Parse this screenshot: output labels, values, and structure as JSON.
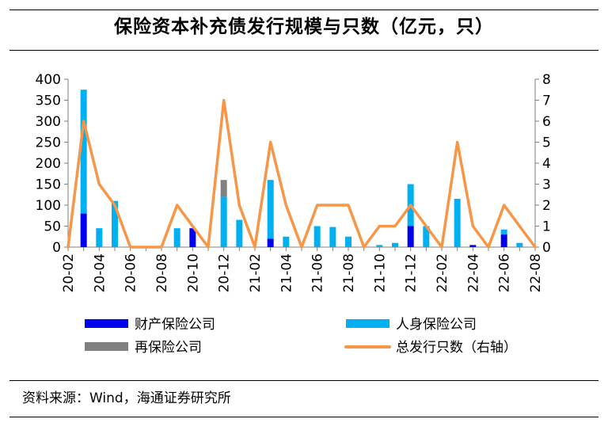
{
  "title": "保险资本补充债发行规模与只数（亿元，只）",
  "source": "资料来源：Wind，海通证券研究所",
  "chart_data": {
    "type": "bar",
    "stacked": true,
    "months": [
      "20-02",
      "20-03",
      "20-04",
      "20-05",
      "20-06",
      "20-07",
      "20-08",
      "20-09",
      "20-10",
      "20-11",
      "20-12",
      "21-01",
      "21-02",
      "21-03",
      "21-04",
      "21-05",
      "21-06",
      "21-07",
      "21-08",
      "21-09",
      "21-10",
      "21-11",
      "21-12",
      "22-01",
      "22-02",
      "22-03",
      "22-04",
      "22-05",
      "22-06",
      "22-07",
      "22-08"
    ],
    "tick_labels": [
      "20-02",
      "20-04",
      "20-06",
      "20-08",
      "20-10",
      "20-12",
      "21-02",
      "21-04",
      "21-06",
      "21-08",
      "21-10",
      "21-12",
      "22-02",
      "22-04",
      "22-06",
      "22-08"
    ],
    "y_left": {
      "min": 0,
      "max": 400,
      "ticks": [
        0,
        50,
        100,
        150,
        200,
        250,
        300,
        350,
        400
      ]
    },
    "y_right": {
      "min": 0,
      "max": 8,
      "ticks": [
        0,
        1,
        2,
        3,
        4,
        5,
        6,
        7,
        8
      ]
    },
    "series": [
      {
        "name": "财产保险公司",
        "kind": "bar",
        "axis": "left",
        "color": "#0000ee",
        "values": [
          0,
          80,
          0,
          0,
          0,
          0,
          0,
          0,
          45,
          0,
          0,
          0,
          0,
          20,
          0,
          0,
          0,
          0,
          0,
          0,
          0,
          0,
          50,
          0,
          0,
          0,
          5,
          0,
          30,
          0,
          0
        ]
      },
      {
        "name": "人身保险公司",
        "kind": "bar",
        "axis": "left",
        "color": "#00b0f0",
        "values": [
          0,
          295,
          45,
          110,
          0,
          0,
          0,
          45,
          0,
          0,
          120,
          65,
          0,
          140,
          25,
          0,
          50,
          48,
          25,
          0,
          5,
          10,
          100,
          50,
          0,
          115,
          0,
          0,
          12,
          10,
          0
        ]
      },
      {
        "name": "再保险公司",
        "kind": "bar",
        "axis": "left",
        "color": "#808080",
        "values": [
          0,
          0,
          0,
          0,
          0,
          0,
          0,
          0,
          0,
          0,
          40,
          0,
          0,
          0,
          0,
          0,
          0,
          0,
          0,
          0,
          0,
          0,
          0,
          0,
          0,
          0,
          0,
          0,
          0,
          0,
          0
        ]
      },
      {
        "name": "总发行只数（右轴）",
        "kind": "line",
        "axis": "right",
        "color": "#f79646",
        "values": [
          0,
          6,
          3,
          2,
          0,
          0,
          0,
          2,
          1,
          0,
          7,
          2,
          0,
          5,
          2,
          0,
          2,
          2,
          2,
          0,
          1,
          1,
          2,
          1,
          0,
          5,
          1,
          0,
          2,
          1,
          0
        ]
      }
    ],
    "legend": {
      "placement": "bottom",
      "columns": 2
    }
  }
}
